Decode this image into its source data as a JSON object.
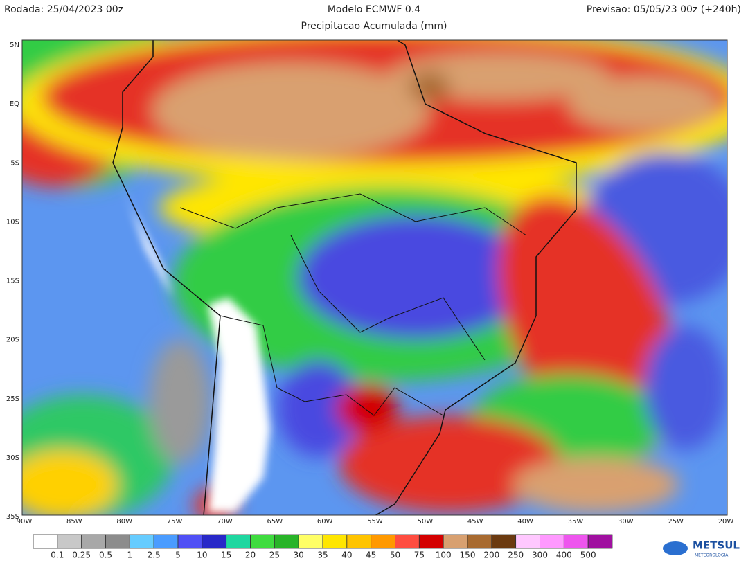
{
  "header": {
    "left": "Rodada: 25/04/2023 00z",
    "title": "Modelo ECMWF 0.4",
    "subtitle": "Precipitacao Acumulada (mm)",
    "right": "Previsao: 05/05/23 00z (+240h)"
  },
  "map": {
    "lat_labels": [
      "5N",
      "EQ",
      "5S",
      "10S",
      "15S",
      "20S",
      "25S",
      "30S",
      "35S"
    ],
    "lon_labels": [
      "90W",
      "85W",
      "80W",
      "75W",
      "70W",
      "65W",
      "60W",
      "55W",
      "50W",
      "45W",
      "40W",
      "35W",
      "30W",
      "25W",
      "20W"
    ]
  },
  "legend": {
    "colors": [
      "#ffffff",
      "#c8c8c8",
      "#a8a8a8",
      "#8c8c8c",
      "#66ccff",
      "#4a9cff",
      "#5050f5",
      "#2828c8",
      "#1ed7a0",
      "#3fdc3f",
      "#28b428",
      "#ffff66",
      "#ffe600",
      "#ffc400",
      "#ff9900",
      "#ff4d40",
      "#d40000",
      "#d8a070",
      "#a86a30",
      "#6b3a10",
      "#ffc8ff",
      "#ff99ff",
      "#ee55ee",
      "#a010a0"
    ],
    "labels": [
      "0.1",
      "0.25",
      "0.5",
      "1",
      "2.5",
      "5",
      "10",
      "15",
      "20",
      "25",
      "30",
      "35",
      "40",
      "45",
      "50",
      "75",
      "100",
      "150",
      "200",
      "250",
      "300",
      "400",
      "500"
    ]
  },
  "logo": {
    "name": "METSUL",
    "tagline": "METEOROLOGIA"
  }
}
